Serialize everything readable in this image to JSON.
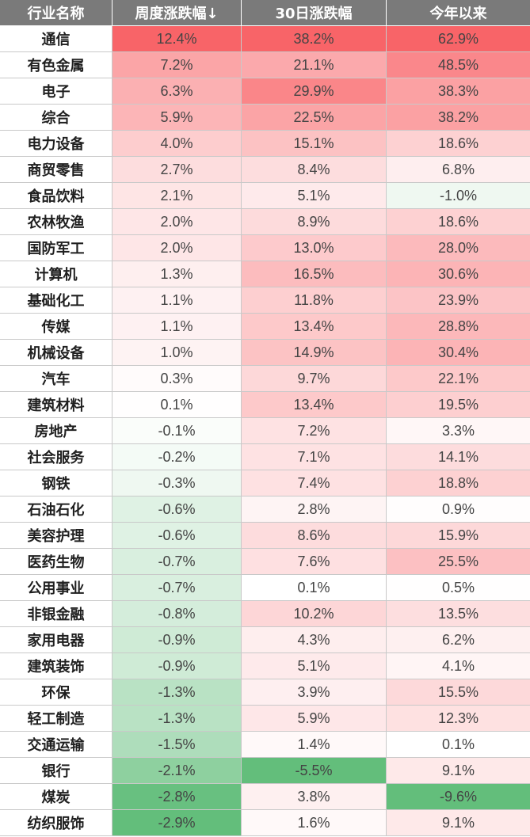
{
  "columns": [
    "行业名称",
    "周度涨跌幅↓",
    "30日涨跌幅",
    "今年以来"
  ],
  "rows": [
    {
      "name": "通信",
      "week": 12.4,
      "d30": 38.2,
      "ytd": 62.9
    },
    {
      "name": "有色金属",
      "week": 7.2,
      "d30": 21.1,
      "ytd": 48.5
    },
    {
      "name": "电子",
      "week": 6.3,
      "d30": 29.9,
      "ytd": 38.3
    },
    {
      "name": "综合",
      "week": 5.9,
      "d30": 22.5,
      "ytd": 38.2
    },
    {
      "name": "电力设备",
      "week": 4.0,
      "d30": 15.1,
      "ytd": 18.6
    },
    {
      "name": "商贸零售",
      "week": 2.7,
      "d30": 8.4,
      "ytd": 6.8
    },
    {
      "name": "食品饮料",
      "week": 2.1,
      "d30": 5.1,
      "ytd": -1.0
    },
    {
      "name": "农林牧渔",
      "week": 2.0,
      "d30": 8.9,
      "ytd": 18.6
    },
    {
      "name": "国防军工",
      "week": 2.0,
      "d30": 13.0,
      "ytd": 28.0
    },
    {
      "name": "计算机",
      "week": 1.3,
      "d30": 16.5,
      "ytd": 30.6
    },
    {
      "name": "基础化工",
      "week": 1.1,
      "d30": 11.8,
      "ytd": 23.9
    },
    {
      "name": "传媒",
      "week": 1.1,
      "d30": 13.4,
      "ytd": 28.8
    },
    {
      "name": "机械设备",
      "week": 1.0,
      "d30": 14.9,
      "ytd": 30.4
    },
    {
      "name": "汽车",
      "week": 0.3,
      "d30": 9.7,
      "ytd": 22.1
    },
    {
      "name": "建筑材料",
      "week": 0.1,
      "d30": 13.4,
      "ytd": 19.5
    },
    {
      "name": "房地产",
      "week": -0.1,
      "d30": 7.2,
      "ytd": 3.3
    },
    {
      "name": "社会服务",
      "week": -0.2,
      "d30": 7.1,
      "ytd": 14.1
    },
    {
      "name": "钢铁",
      "week": -0.3,
      "d30": 7.4,
      "ytd": 18.8
    },
    {
      "name": "石油石化",
      "week": -0.6,
      "d30": 2.8,
      "ytd": 0.9
    },
    {
      "name": "美容护理",
      "week": -0.6,
      "d30": 8.6,
      "ytd": 15.9
    },
    {
      "name": "医药生物",
      "week": -0.7,
      "d30": 7.6,
      "ytd": 25.5
    },
    {
      "name": "公用事业",
      "week": -0.7,
      "d30": 0.1,
      "ytd": 0.5
    },
    {
      "name": "非银金融",
      "week": -0.8,
      "d30": 10.2,
      "ytd": 13.5
    },
    {
      "name": "家用电器",
      "week": -0.9,
      "d30": 4.3,
      "ytd": 6.2
    },
    {
      "name": "建筑装饰",
      "week": -0.9,
      "d30": 5.1,
      "ytd": 4.1
    },
    {
      "name": "环保",
      "week": -1.3,
      "d30": 3.9,
      "ytd": 15.5
    },
    {
      "name": "轻工制造",
      "week": -1.3,
      "d30": 5.9,
      "ytd": 12.3
    },
    {
      "name": "交通运输",
      "week": -1.5,
      "d30": 1.4,
      "ytd": 0.1
    },
    {
      "name": "银行",
      "week": -2.1,
      "d30": -5.5,
      "ytd": 9.1
    },
    {
      "name": "煤炭",
      "week": -2.8,
      "d30": 3.8,
      "ytd": -9.6
    },
    {
      "name": "纺织服饰",
      "week": -2.9,
      "d30": 1.6,
      "ytd": 9.1
    }
  ],
  "colors": {
    "header_bg": "#7a7a7a",
    "positive_max": "#f86468",
    "negative_max": "#63be7b",
    "neutral": "#ffffff"
  }
}
